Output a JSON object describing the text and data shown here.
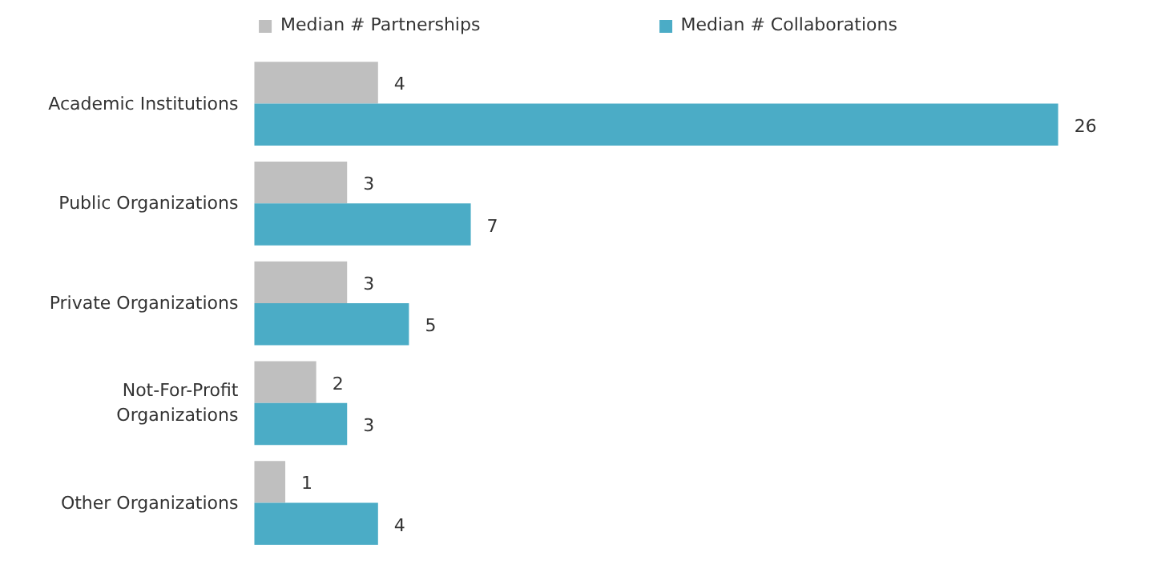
{
  "chart_data": {
    "type": "bar",
    "orientation": "horizontal",
    "categories": [
      "Academic Institutions",
      "Public Organizations",
      "Private Organizations",
      "Not-For-Profit Organizations",
      "Other Organizations"
    ],
    "series": [
      {
        "name": "Median # Partnerships",
        "color": "#bfbfbf",
        "values": [
          4,
          3,
          3,
          2,
          1
        ]
      },
      {
        "name": "Median # Collaborations",
        "color": "#4bacc6",
        "values": [
          26,
          7,
          5,
          3,
          4
        ]
      }
    ],
    "data_labels": true,
    "legend": "top",
    "grid": false
  }
}
